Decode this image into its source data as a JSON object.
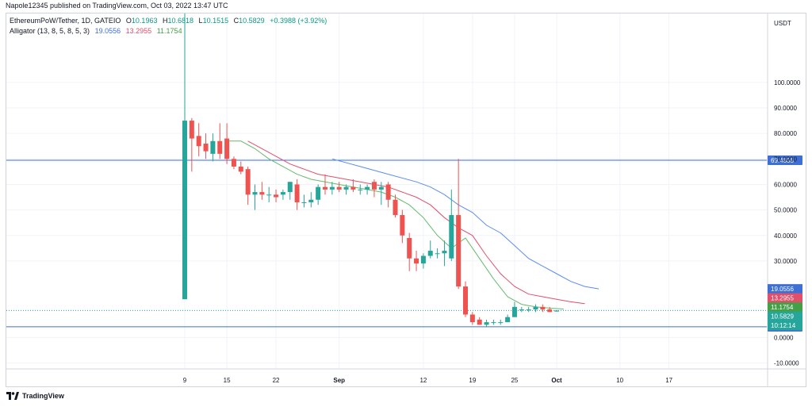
{
  "header": {
    "published": "Napole12345 published on TradingView.com, Oct 03, 2022 13:47 UTC"
  },
  "legend": {
    "symbol": "EthereumPoW/Tether, 1D, GATEIO",
    "open_label": "O",
    "open": "10.1963",
    "high_label": "H",
    "high": "10.6818",
    "low_label": "L",
    "low": "10.1515",
    "close_label": "C",
    "close": "10.5829",
    "change": "+0.3988 (+3.92%)",
    "alligator_label": "Alligator (13, 8, 5, 8, 5, 3)",
    "jaw": "19.0556",
    "teeth": "13.2955",
    "lips": "11.1754"
  },
  "footer": {
    "brand": "TradingView"
  },
  "colors": {
    "up": "#26a69a",
    "down": "#ef5350",
    "jaw": "#5b8def",
    "teeth": "#e0506b",
    "lips": "#66bb6a",
    "hline": "#3d6fd4",
    "last": "#26a69a"
  },
  "chart_data": {
    "type": "candlestick",
    "currency": "USDT",
    "ylim": [
      -12,
      127
    ],
    "y_ticks": [
      "100.0000",
      "90.0000",
      "80.0000",
      "70.0000",
      "60.0000",
      "50.0000",
      "40.0000",
      "30.0000",
      "0.0000",
      "-10.0000"
    ],
    "y_tick_values": [
      100,
      90,
      80,
      70,
      60,
      50,
      40,
      30,
      0,
      -10
    ],
    "x_ticks": [
      "9",
      "15",
      "22",
      "Sep",
      "12",
      "19",
      "25",
      "Oct",
      "10",
      "17"
    ],
    "x_tick_days": [
      9,
      15,
      22,
      31,
      43,
      50,
      56,
      62,
      71,
      78
    ],
    "x_start_label": "Aug 9",
    "candles": [
      {
        "d": 9,
        "o": 15,
        "h": 127,
        "l": 15,
        "c": 85
      },
      {
        "d": 10,
        "o": 85,
        "h": 86,
        "l": 65,
        "c": 78
      },
      {
        "d": 11,
        "o": 79,
        "h": 84,
        "l": 71,
        "c": 75
      },
      {
        "d": 12,
        "o": 76,
        "h": 80,
        "l": 70,
        "c": 73
      },
      {
        "d": 13,
        "o": 72,
        "h": 80,
        "l": 69,
        "c": 77
      },
      {
        "d": 14,
        "o": 77,
        "h": 84,
        "l": 70,
        "c": 72
      },
      {
        "d": 15,
        "o": 78,
        "h": 84,
        "l": 68,
        "c": 70
      },
      {
        "d": 16,
        "o": 70,
        "h": 71,
        "l": 66,
        "c": 67
      },
      {
        "d": 17,
        "o": 67,
        "h": 69,
        "l": 64,
        "c": 65
      },
      {
        "d": 18,
        "o": 66,
        "h": 67,
        "l": 52,
        "c": 56
      },
      {
        "d": 19,
        "o": 56,
        "h": 60,
        "l": 50,
        "c": 57
      },
      {
        "d": 20,
        "o": 57,
        "h": 61,
        "l": 54,
        "c": 56
      },
      {
        "d": 21,
        "o": 56,
        "h": 59,
        "l": 53,
        "c": 56
      },
      {
        "d": 22,
        "o": 56,
        "h": 58,
        "l": 53,
        "c": 55
      },
      {
        "d": 23,
        "o": 56,
        "h": 58,
        "l": 54,
        "c": 57
      },
      {
        "d": 24,
        "o": 57,
        "h": 61,
        "l": 54,
        "c": 61
      },
      {
        "d": 25,
        "o": 60,
        "h": 62,
        "l": 50,
        "c": 53
      },
      {
        "d": 26,
        "o": 53,
        "h": 56,
        "l": 51,
        "c": 53
      },
      {
        "d": 27,
        "o": 53,
        "h": 57,
        "l": 51,
        "c": 54
      },
      {
        "d": 28,
        "o": 54,
        "h": 60,
        "l": 52,
        "c": 59
      },
      {
        "d": 29,
        "o": 59,
        "h": 64,
        "l": 56,
        "c": 58
      },
      {
        "d": 30,
        "o": 58,
        "h": 61,
        "l": 56,
        "c": 59
      },
      {
        "d": 31,
        "o": 59,
        "h": 61,
        "l": 57,
        "c": 58
      },
      {
        "d": 32,
        "o": 58,
        "h": 60,
        "l": 56,
        "c": 59
      },
      {
        "d": 33,
        "o": 59,
        "h": 62,
        "l": 57,
        "c": 58
      },
      {
        "d": 34,
        "o": 58,
        "h": 60,
        "l": 56,
        "c": 58
      },
      {
        "d": 35,
        "o": 58,
        "h": 60,
        "l": 56,
        "c": 59
      },
      {
        "d": 36,
        "o": 61,
        "h": 62,
        "l": 55,
        "c": 58
      },
      {
        "d": 37,
        "o": 58,
        "h": 61,
        "l": 52,
        "c": 59
      },
      {
        "d": 38,
        "o": 60,
        "h": 61,
        "l": 51,
        "c": 54
      },
      {
        "d": 39,
        "o": 54,
        "h": 56,
        "l": 47,
        "c": 48
      },
      {
        "d": 40,
        "o": 48,
        "h": 50,
        "l": 37,
        "c": 40
      },
      {
        "d": 41,
        "o": 39,
        "h": 41,
        "l": 26,
        "c": 31
      },
      {
        "d": 42,
        "o": 31,
        "h": 34,
        "l": 26,
        "c": 29
      },
      {
        "d": 43,
        "o": 29,
        "h": 33,
        "l": 27,
        "c": 32
      },
      {
        "d": 44,
        "o": 32,
        "h": 38,
        "l": 31,
        "c": 34
      },
      {
        "d": 45,
        "o": 33,
        "h": 35,
        "l": 31,
        "c": 33
      },
      {
        "d": 46,
        "o": 33,
        "h": 38,
        "l": 28,
        "c": 34
      },
      {
        "d": 47,
        "o": 31,
        "h": 58,
        "l": 30,
        "c": 48
      },
      {
        "d": 48,
        "o": 48,
        "h": 70,
        "l": 19,
        "c": 20
      },
      {
        "d": 49,
        "o": 20,
        "h": 22,
        "l": 8,
        "c": 9
      },
      {
        "d": 50,
        "o": 9,
        "h": 10,
        "l": 5,
        "c": 6
      },
      {
        "d": 51,
        "o": 7,
        "h": 8,
        "l": 5,
        "c": 5
      },
      {
        "d": 52,
        "o": 5,
        "h": 7,
        "l": 4,
        "c": 6
      },
      {
        "d": 53,
        "o": 6,
        "h": 7,
        "l": 5,
        "c": 6
      },
      {
        "d": 54,
        "o": 6,
        "h": 7,
        "l": 5,
        "c": 6
      },
      {
        "d": 55,
        "o": 6,
        "h": 9,
        "l": 6,
        "c": 8
      },
      {
        "d": 56,
        "o": 8,
        "h": 14,
        "l": 8,
        "c": 12
      },
      {
        "d": 57,
        "o": 11,
        "h": 12,
        "l": 10,
        "c": 11
      },
      {
        "d": 58,
        "o": 11,
        "h": 12,
        "l": 10,
        "c": 11
      },
      {
        "d": 59,
        "o": 11,
        "h": 13,
        "l": 10,
        "c": 12
      },
      {
        "d": 60,
        "o": 12,
        "h": 13,
        "l": 10,
        "c": 11
      },
      {
        "d": 61,
        "o": 11,
        "h": 12,
        "l": 10,
        "c": 10
      },
      {
        "d": 62,
        "o": 10.1963,
        "h": 10.6818,
        "l": 10.1515,
        "c": 10.5829
      }
    ],
    "series": [
      {
        "name": "Jaw",
        "points": [
          [
            30,
            70
          ],
          [
            34,
            67
          ],
          [
            38,
            64
          ],
          [
            42,
            61
          ],
          [
            44,
            59
          ],
          [
            46,
            56
          ],
          [
            48,
            52
          ],
          [
            50,
            49
          ],
          [
            52,
            44
          ],
          [
            54,
            41
          ],
          [
            56,
            36
          ],
          [
            58,
            31
          ],
          [
            60,
            28
          ],
          [
            62,
            25
          ],
          [
            64,
            22
          ],
          [
            66,
            20
          ],
          [
            68,
            19.0556
          ]
        ]
      },
      {
        "name": "Teeth",
        "points": [
          [
            18,
            77
          ],
          [
            20,
            74
          ],
          [
            22,
            71
          ],
          [
            24,
            68
          ],
          [
            26,
            66
          ],
          [
            28,
            64
          ],
          [
            30,
            63
          ],
          [
            32,
            62
          ],
          [
            34,
            61
          ],
          [
            36,
            60
          ],
          [
            38,
            59
          ],
          [
            40,
            57
          ],
          [
            42,
            55
          ],
          [
            44,
            52
          ],
          [
            46,
            47
          ],
          [
            48,
            43
          ],
          [
            50,
            40
          ],
          [
            52,
            32
          ],
          [
            54,
            25
          ],
          [
            56,
            20
          ],
          [
            58,
            17
          ],
          [
            60,
            16
          ],
          [
            62,
            15
          ],
          [
            64,
            14
          ],
          [
            66,
            13.2955
          ]
        ]
      },
      {
        "name": "Lips",
        "points": [
          [
            15,
            77
          ],
          [
            17,
            77
          ],
          [
            19,
            74
          ],
          [
            21,
            70
          ],
          [
            23,
            67
          ],
          [
            25,
            64
          ],
          [
            27,
            62
          ],
          [
            29,
            61
          ],
          [
            31,
            60
          ],
          [
            33,
            59
          ],
          [
            35,
            58
          ],
          [
            37,
            57
          ],
          [
            39,
            55
          ],
          [
            41,
            52
          ],
          [
            43,
            47
          ],
          [
            45,
            40
          ],
          [
            47,
            35
          ],
          [
            49,
            39
          ],
          [
            51,
            31
          ],
          [
            53,
            23
          ],
          [
            55,
            16
          ],
          [
            57,
            13
          ],
          [
            59,
            12
          ],
          [
            61,
            11.5
          ],
          [
            63,
            11.1754
          ]
        ]
      }
    ],
    "h_lines": [
      {
        "name": "upper",
        "value": 69.4808,
        "label": "69.4808"
      },
      {
        "name": "lower",
        "value": 4.2149,
        "label": "4.2149"
      }
    ],
    "price_tags": [
      {
        "name": "jaw",
        "label": "19.0556",
        "value": 19.0556,
        "color": "#3d6fd4"
      },
      {
        "name": "teeth",
        "label": "13.2955",
        "value": 13.2955,
        "color": "#e0506b"
      },
      {
        "name": "lips",
        "label": "11.1754",
        "value": 11.1754,
        "color": "#43a047"
      },
      {
        "name": "last",
        "label": "10.5829",
        "value": 10.5829,
        "color": "#26a69a"
      },
      {
        "name": "countdown",
        "label": "10:12:14",
        "value": 10.5829,
        "color": "#26a69a"
      }
    ]
  }
}
